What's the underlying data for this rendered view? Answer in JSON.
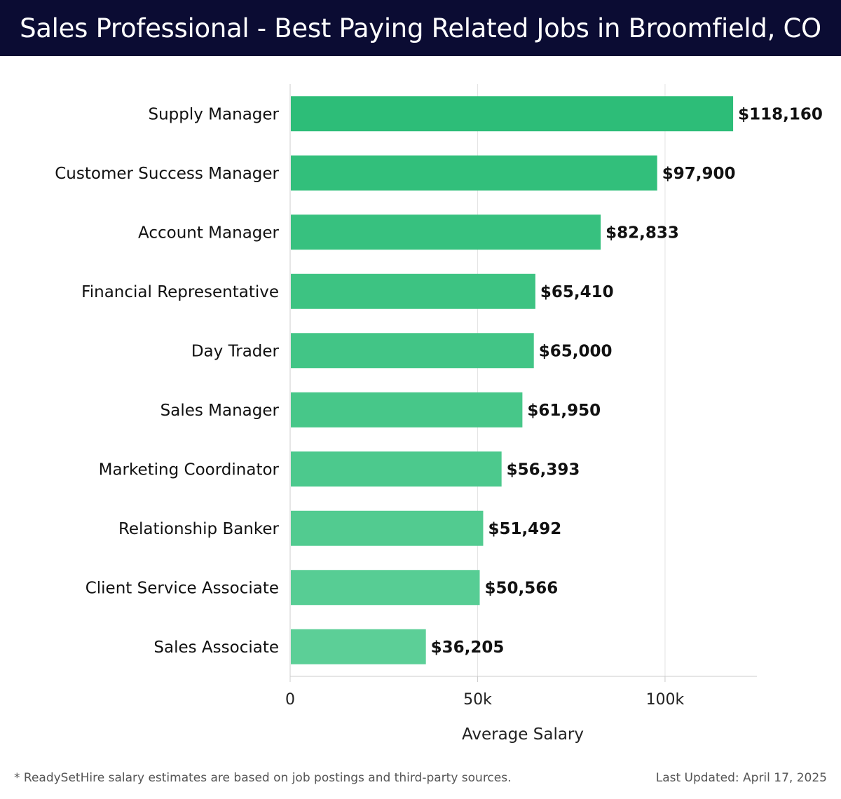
{
  "header": {
    "title": "Sales Professional - Best Paying Related Jobs in Broomfield, CO"
  },
  "chart_data": {
    "type": "bar",
    "orientation": "horizontal",
    "categories": [
      "Supply Manager",
      "Customer Success Manager",
      "Account Manager",
      "Financial Representative",
      "Day Trader",
      "Sales Manager",
      "Marketing Coordinator",
      "Relationship Banker",
      "Client Service Associate",
      "Sales Associate"
    ],
    "values": [
      118160,
      97900,
      82833,
      65410,
      65000,
      61950,
      56393,
      51492,
      50566,
      36205
    ],
    "value_labels": [
      "$118,160",
      "$97,900",
      "$82,833",
      "$65,410",
      "$65,000",
      "$61,950",
      "$56,393",
      "$51,492",
      "$50,566",
      "$36,205"
    ],
    "xlabel": "Average Salary",
    "ylabel": "",
    "xlim": [
      0,
      124500
    ],
    "x_ticks": [
      0,
      50000,
      100000
    ],
    "x_tick_labels": [
      "0",
      "50k",
      "100k"
    ],
    "grid": "vertical",
    "colors": {
      "bar_dark": "#2dbd78",
      "bar_light": "#5ccf97",
      "grid": "#e3e3e3",
      "axis": "#cccccc"
    }
  },
  "footer": {
    "note": "* ReadySetHire salary estimates are based on job postings and third-party sources.",
    "updated": "Last Updated: April 17, 2025"
  }
}
